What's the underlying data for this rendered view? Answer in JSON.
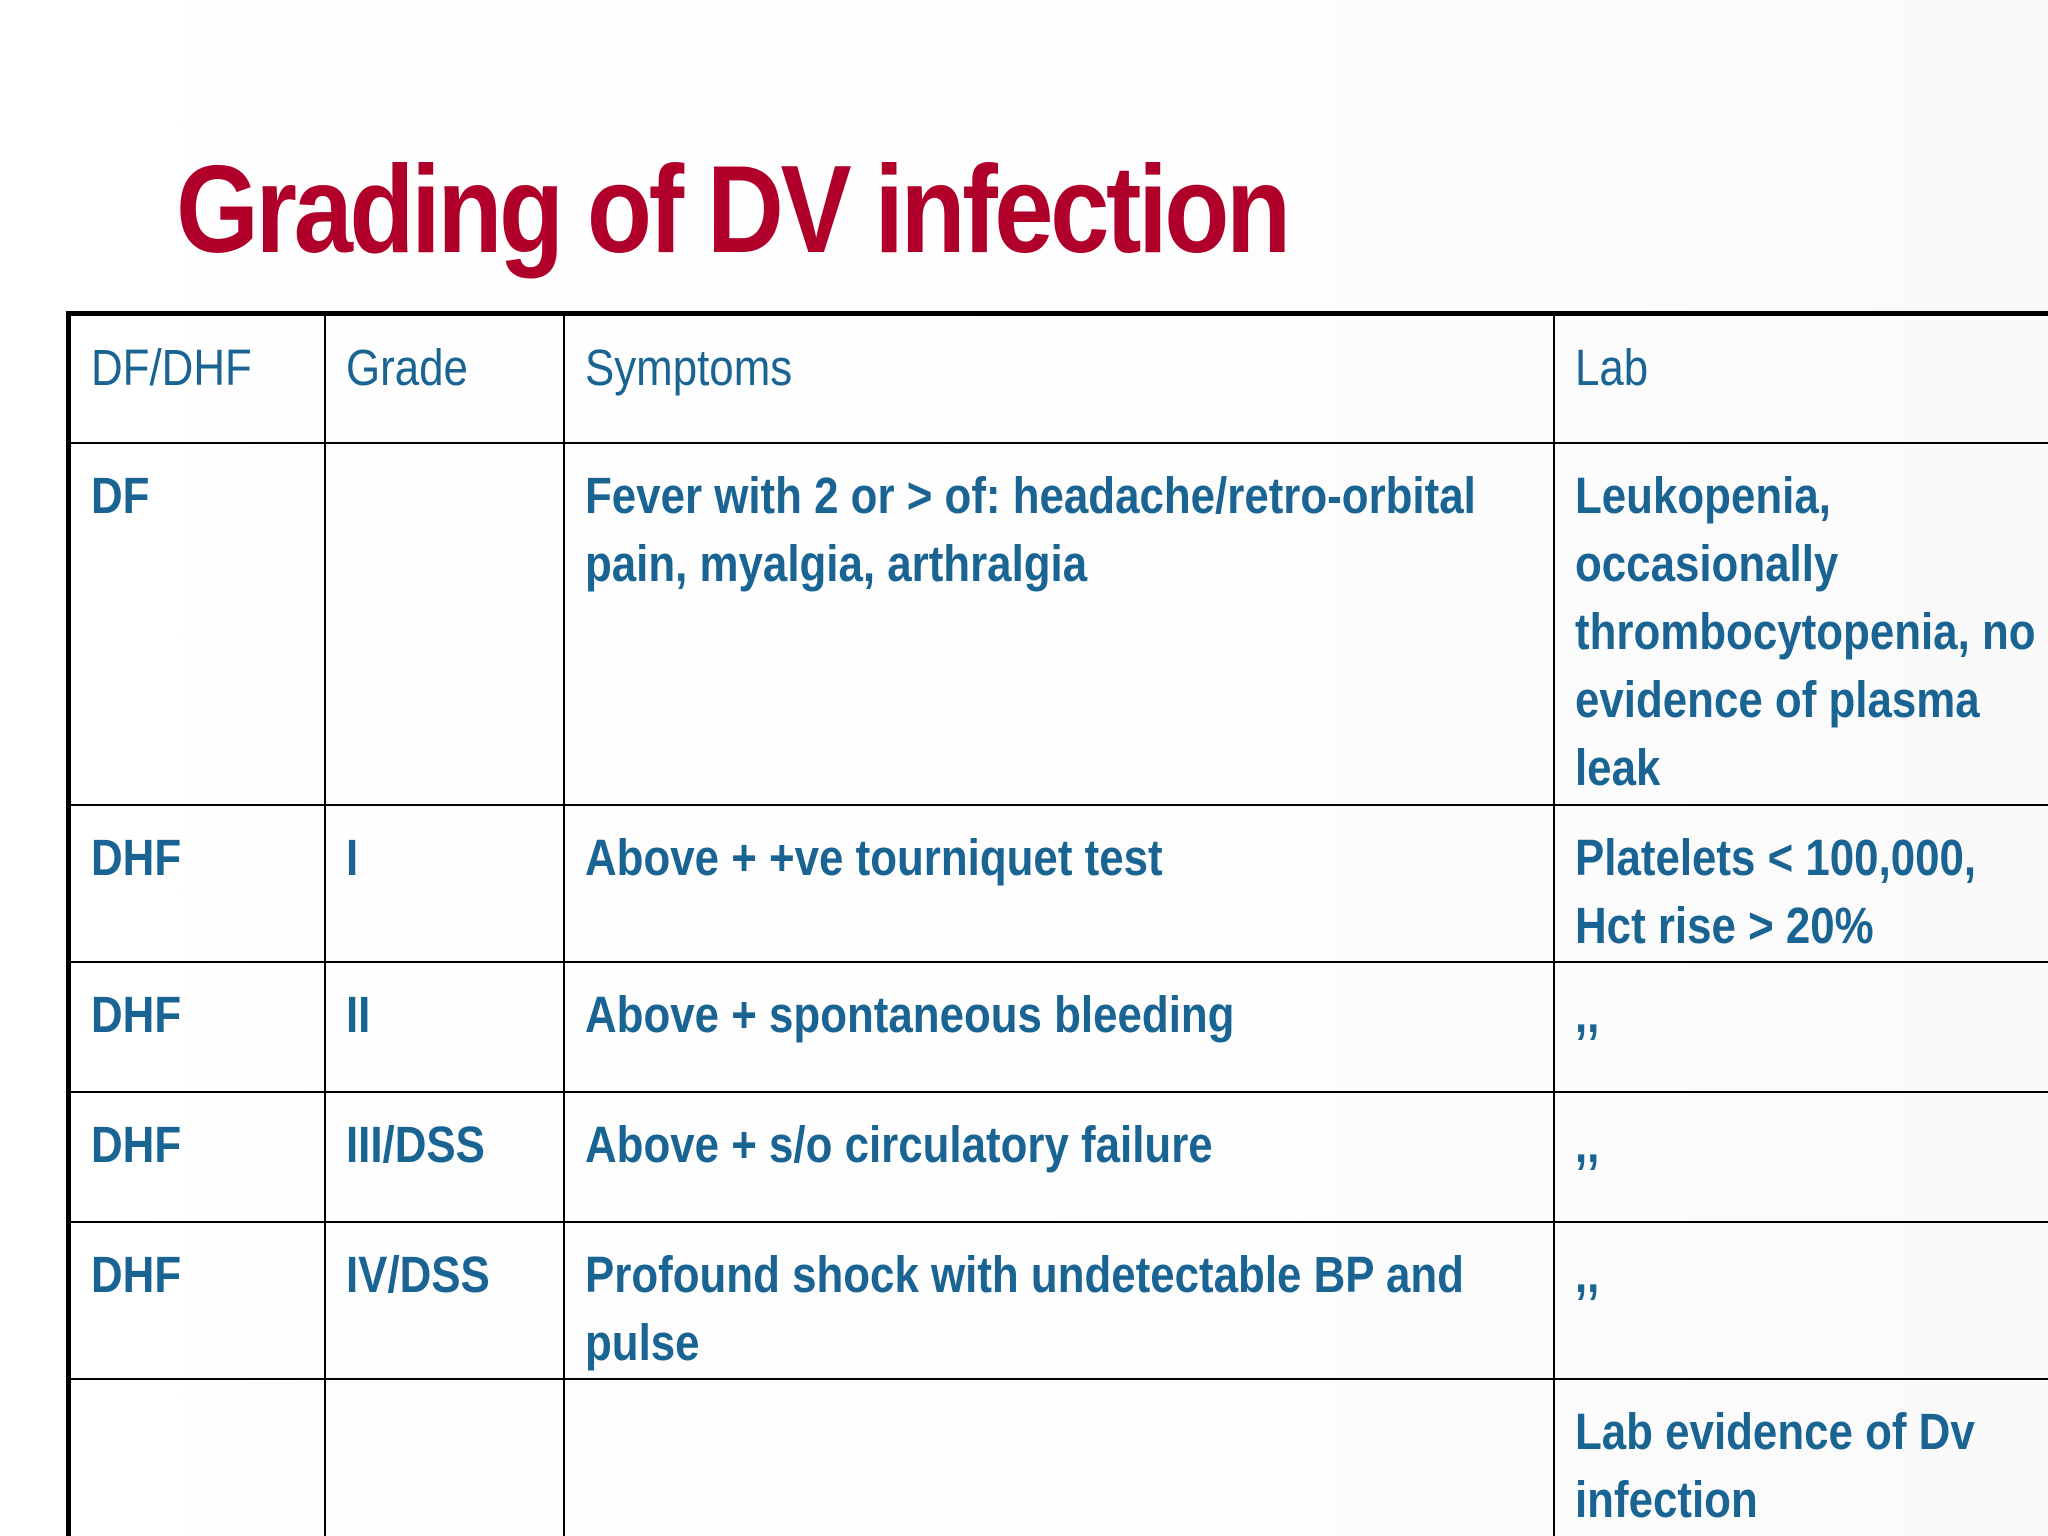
{
  "slide": {
    "title": "Grading of DV infection"
  },
  "table": {
    "headers": [
      "DF/DHF",
      "Grade",
      "Symptoms",
      "Lab"
    ],
    "rows": [
      [
        "DF",
        "",
        "Fever with 2 or > of: headache/retro-orbital pain, myalgia, arthralgia",
        "Leukopenia, occasionally thrombocytopenia, no evidence of plasma leak"
      ],
      [
        "DHF",
        "I",
        "Above + +ve tourniquet test",
        "Platelets < 100,000, Hct rise > 20%"
      ],
      [
        "DHF",
        "II",
        "Above + spontaneous bleeding",
        ",,"
      ],
      [
        "DHF",
        "III/DSS",
        "Above + s/o circulatory failure",
        ",,"
      ],
      [
        "DHF",
        "IV/DSS",
        "Profound shock with undetectable BP and pulse",
        ",,"
      ],
      [
        "",
        "",
        "",
        "Lab evidence of Dv infection"
      ]
    ]
  },
  "colors": {
    "title": "#b0002a",
    "table_text": "#1a6493",
    "border": "#000000"
  }
}
